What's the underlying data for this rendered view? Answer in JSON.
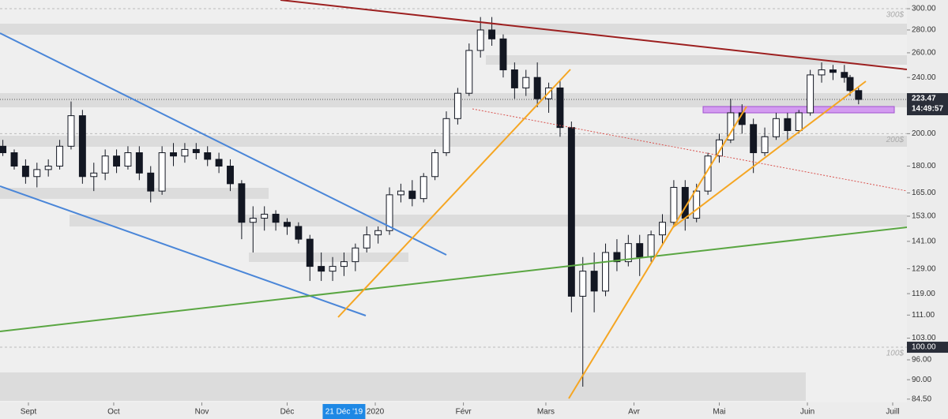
{
  "chart_data": {
    "type": "candlestick",
    "log_scale": true,
    "x": [
      -9,
      -5,
      -1,
      3,
      7,
      11,
      15,
      19,
      23,
      27,
      31,
      35,
      39,
      43,
      47,
      51,
      55,
      59,
      63,
      67,
      71,
      75,
      79,
      83,
      87,
      91,
      95,
      99,
      103,
      107,
      111,
      115,
      119,
      123,
      127,
      131,
      135,
      139,
      143,
      147,
      151,
      155,
      159,
      163,
      167,
      171,
      175,
      179,
      183,
      187,
      191,
      195,
      199,
      203,
      207,
      211,
      215,
      219,
      223,
      227,
      231,
      235,
      239,
      243,
      247,
      251,
      255,
      259,
      263,
      267,
      271,
      275,
      279,
      283,
      287,
      289,
      292
    ],
    "open": [
      192,
      188,
      180,
      174,
      178,
      180,
      192,
      212,
      174,
      176,
      186,
      180,
      188,
      176,
      166,
      188,
      186,
      190,
      188,
      184,
      180,
      170,
      150,
      152,
      154,
      150,
      148,
      142,
      130,
      128,
      130,
      132,
      138,
      144,
      146,
      164,
      166,
      162,
      174,
      188,
      210,
      228,
      262,
      280,
      272,
      246,
      232,
      240,
      224,
      232,
      204,
      118,
      128,
      120,
      136,
      132,
      140,
      134,
      144,
      150,
      168,
      152,
      166,
      186,
      196,
      214,
      206,
      188,
      198,
      210,
      202,
      214,
      242,
      246,
      244,
      240,
      230
    ],
    "high": [
      196,
      190,
      184,
      182,
      184,
      196,
      222,
      216,
      182,
      190,
      190,
      192,
      192,
      180,
      192,
      194,
      194,
      194,
      192,
      188,
      184,
      172,
      158,
      158,
      156,
      152,
      150,
      144,
      136,
      134,
      136,
      140,
      148,
      148,
      168,
      170,
      172,
      176,
      190,
      215,
      232,
      268,
      292,
      292,
      276,
      252,
      246,
      252,
      236,
      238,
      208,
      134,
      136,
      140,
      142,
      144,
      144,
      146,
      154,
      172,
      172,
      170,
      188,
      200,
      224,
      220,
      210,
      204,
      214,
      214,
      216,
      246,
      252,
      250,
      250,
      242,
      232
    ],
    "low": [
      186,
      178,
      170,
      168,
      174,
      178,
      190,
      170,
      166,
      172,
      176,
      178,
      172,
      160,
      164,
      180,
      182,
      184,
      180,
      176,
      166,
      142,
      136,
      146,
      146,
      144,
      140,
      124,
      124,
      124,
      126,
      128,
      136,
      140,
      144,
      160,
      158,
      160,
      172,
      186,
      206,
      226,
      256,
      266,
      240,
      224,
      226,
      218,
      214,
      198,
      112,
      88,
      112,
      118,
      128,
      130,
      126,
      132,
      140,
      148,
      146,
      150,
      164,
      182,
      194,
      200,
      176,
      186,
      196,
      196,
      200,
      212,
      236,
      238,
      236,
      226,
      220
    ],
    "close": [
      188,
      180,
      174,
      178,
      180,
      192,
      212,
      174,
      176,
      186,
      180,
      188,
      176,
      166,
      188,
      186,
      190,
      188,
      184,
      180,
      170,
      150,
      152,
      154,
      150,
      148,
      142,
      130,
      128,
      130,
      132,
      138,
      144,
      146,
      164,
      166,
      162,
      174,
      188,
      210,
      228,
      262,
      280,
      272,
      246,
      232,
      240,
      224,
      232,
      204,
      118,
      128,
      120,
      136,
      132,
      140,
      134,
      144,
      150,
      168,
      152,
      166,
      186,
      196,
      214,
      206,
      188,
      198,
      210,
      202,
      214,
      242,
      246,
      244,
      240,
      230,
      223.47
    ],
    "up_color": "#ffffff",
    "down_color": "#131722",
    "xlim": [
      -10,
      309
    ],
    "ylim": [
      83.6,
      308.6
    ],
    "xticks": [
      {
        "value": 0,
        "label": "Sept"
      },
      {
        "value": 30,
        "label": "Oct"
      },
      {
        "value": 61,
        "label": "Nov"
      },
      {
        "value": 91,
        "label": "Déc"
      },
      {
        "value": 122,
        "label": "2020"
      },
      {
        "value": 153,
        "label": "Févr"
      },
      {
        "value": 182,
        "label": "Mars"
      },
      {
        "value": 213,
        "label": "Avr"
      },
      {
        "value": 243,
        "label": "Mai"
      },
      {
        "value": 274,
        "label": "Juin"
      },
      {
        "value": 304,
        "label": "Juill"
      }
    ],
    "yticks": [
      {
        "value": 300,
        "label": "300.00"
      },
      {
        "value": 280,
        "label": "280.00"
      },
      {
        "value": 260,
        "label": "260.00"
      },
      {
        "value": 240,
        "label": "240.00"
      },
      {
        "value": 200,
        "label": "200.00"
      },
      {
        "value": 180,
        "label": "180.00"
      },
      {
        "value": 165,
        "label": "165.00"
      },
      {
        "value": 153,
        "label": "153.00"
      },
      {
        "value": 141,
        "label": "141.00"
      },
      {
        "value": 129,
        "label": "129.00"
      },
      {
        "value": 119,
        "label": "119.00"
      },
      {
        "value": 111,
        "label": "111.00"
      },
      {
        "value": 103,
        "label": "103.00"
      },
      {
        "value": 96,
        "label": "96.00"
      },
      {
        "value": 90,
        "label": "90.00"
      },
      {
        "value": 84.5,
        "label": "84.50"
      }
    ],
    "levels": [
      {
        "value": 300,
        "label": "300$"
      },
      {
        "value": 200,
        "label": "200$"
      },
      {
        "value": 100,
        "label": "100$"
      }
    ],
    "last_price": {
      "value": 223.47,
      "label": "223.47"
    },
    "countdown": "14:49:57",
    "crosshair_price": {
      "value": 100,
      "label": "100.00"
    },
    "crosshair_date": {
      "value": 111,
      "label": "21 Déc '19"
    }
  }
}
